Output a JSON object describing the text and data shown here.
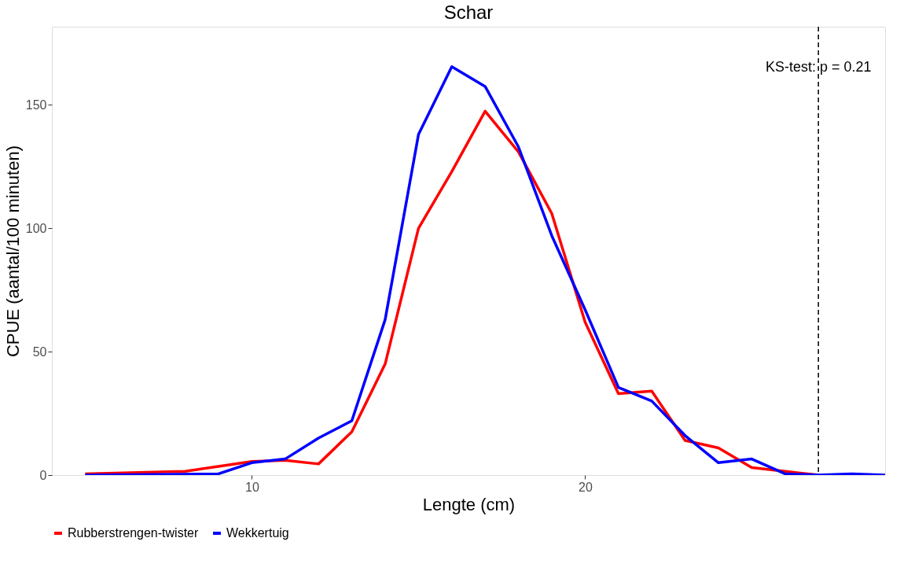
{
  "chart_data": {
    "type": "line",
    "title": "Schar",
    "xlabel": "Lengte (cm)",
    "ylabel": "CPUE (aantal/100 minuten)",
    "xlim": [
      4,
      29
    ],
    "xticks": [
      10,
      20
    ],
    "ylim": [
      0,
      181.7
    ],
    "yticks": [
      0,
      50,
      100,
      150
    ],
    "grid": false,
    "legend": "bottom",
    "line_style": "solid",
    "marker": "none",
    "series": [
      {
        "name": "Rubberstrengen-twister",
        "color": "#ff0000",
        "x": [
          5,
          8,
          9,
          10,
          11,
          12,
          13,
          14,
          15,
          16,
          17,
          18,
          19,
          20,
          21,
          22,
          23,
          24,
          25,
          26,
          27
        ],
        "values": [
          0.5,
          1.5,
          3.5,
          5.5,
          6,
          4.5,
          17.5,
          45,
          100,
          123,
          147.5,
          131,
          106,
          62,
          33,
          34,
          14,
          11,
          3,
          1.5,
          0
        ]
      },
      {
        "name": "Wekkertuig",
        "color": "#0000ff",
        "x": [
          5,
          9,
          10,
          11,
          12,
          13,
          14,
          15,
          16,
          17,
          18,
          19,
          20,
          21,
          22,
          23,
          24,
          25,
          26,
          27,
          28,
          29
        ],
        "values": [
          0,
          0.5,
          5,
          6.5,
          15,
          22,
          63,
          138,
          165.5,
          157.5,
          133,
          97,
          67,
          35.5,
          30,
          16,
          5,
          6.5,
          0.5,
          0,
          0.5,
          0
        ]
      }
    ],
    "annotations": [
      {
        "text": "KS-test: p = 0.21",
        "x": 27,
        "y": 165
      }
    ],
    "ref_lines": [
      {
        "axis": "x",
        "value": 27,
        "color": "#000000",
        "line_style": "dashed"
      }
    ]
  }
}
